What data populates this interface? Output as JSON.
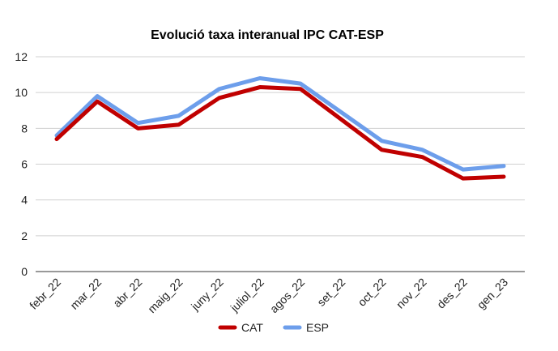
{
  "chart_data": {
    "type": "line",
    "title": "Evolució taxa interanual IPC CAT-ESP",
    "xlabel": "",
    "ylabel": "",
    "categories": [
      "febr_22",
      "mar_22",
      "abr_22",
      "maig_22",
      "juny_22",
      "juliol_22",
      "agos_22",
      "set_22",
      "oct_22",
      "nov_22",
      "des_22",
      "gen_23"
    ],
    "series": [
      {
        "name": "CAT",
        "color": "#c00000",
        "values": [
          7.4,
          9.5,
          8.0,
          8.2,
          9.7,
          10.3,
          10.2,
          8.5,
          6.8,
          6.4,
          5.2,
          5.3
        ]
      },
      {
        "name": "ESP",
        "color": "#6d9eeb",
        "values": [
          7.6,
          9.8,
          8.3,
          8.7,
          10.2,
          10.8,
          10.5,
          8.9,
          7.3,
          6.8,
          5.7,
          5.9
        ]
      }
    ],
    "ylim": [
      0,
      12
    ],
    "yticks": [
      0,
      2,
      4,
      6,
      8,
      10,
      12
    ],
    "grid": true,
    "legend_position": "bottom"
  }
}
